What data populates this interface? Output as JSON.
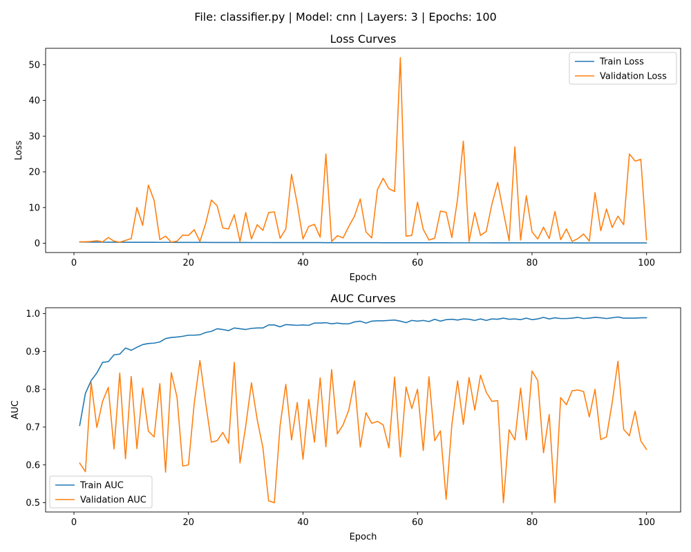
{
  "suptitle": "File: classifier.py | Model: cnn | Layers: 3 | Epochs: 100",
  "colors": {
    "train": "#1f77b4",
    "validation": "#ff7f0e"
  },
  "chart_data": [
    {
      "type": "line",
      "title": "Loss Curves",
      "xlabel": "Epoch",
      "ylabel": "Loss",
      "xlim": [
        -4.95,
        105.95
      ],
      "ylim": [
        -2.6,
        54.6
      ],
      "xticks": [
        0,
        20,
        40,
        60,
        80,
        100
      ],
      "yticks": [
        0,
        10,
        20,
        30,
        40,
        50
      ],
      "legend": "upper right",
      "grid": false,
      "x": [
        1,
        2,
        3,
        4,
        5,
        6,
        7,
        8,
        9,
        10,
        11,
        12,
        13,
        14,
        15,
        16,
        17,
        18,
        19,
        20,
        21,
        22,
        23,
        24,
        25,
        26,
        27,
        28,
        29,
        30,
        31,
        32,
        33,
        34,
        35,
        36,
        37,
        38,
        39,
        40,
        41,
        42,
        43,
        44,
        45,
        46,
        47,
        48,
        49,
        50,
        51,
        52,
        53,
        54,
        55,
        56,
        57,
        58,
        59,
        60,
        61,
        62,
        63,
        64,
        65,
        66,
        67,
        68,
        69,
        70,
        71,
        72,
        73,
        74,
        75,
        76,
        77,
        78,
        79,
        80,
        81,
        82,
        83,
        84,
        85,
        86,
        87,
        88,
        89,
        90,
        91,
        92,
        93,
        94,
        95,
        96,
        97,
        98,
        99,
        100
      ],
      "series": [
        {
          "name": "Train Loss",
          "color": "#1f77b4",
          "values": [
            0.35,
            0.33,
            0.32,
            0.31,
            0.3,
            0.29,
            0.29,
            0.28,
            0.28,
            0.27,
            0.27,
            0.26,
            0.26,
            0.26,
            0.25,
            0.25,
            0.25,
            0.24,
            0.24,
            0.24,
            0.23,
            0.23,
            0.23,
            0.22,
            0.22,
            0.22,
            0.21,
            0.21,
            0.21,
            0.21,
            0.2,
            0.2,
            0.2,
            0.2,
            0.19,
            0.19,
            0.19,
            0.19,
            0.18,
            0.18,
            0.18,
            0.18,
            0.18,
            0.17,
            0.17,
            0.17,
            0.17,
            0.17,
            0.16,
            0.16,
            0.16,
            0.16,
            0.16,
            0.15,
            0.15,
            0.15,
            0.15,
            0.15,
            0.15,
            0.14,
            0.14,
            0.14,
            0.14,
            0.14,
            0.14,
            0.13,
            0.13,
            0.13,
            0.13,
            0.13,
            0.13,
            0.13,
            0.12,
            0.12,
            0.12,
            0.12,
            0.12,
            0.12,
            0.12,
            0.11,
            0.11,
            0.11,
            0.11,
            0.11,
            0.11,
            0.11,
            0.11,
            0.1,
            0.1,
            0.1,
            0.1,
            0.1,
            0.1,
            0.1,
            0.1,
            0.1,
            0.09,
            0.09,
            0.09,
            0.09
          ]
        },
        {
          "name": "Validation Loss",
          "color": "#ff7f0e",
          "values": [
            0.4,
            0.4,
            0.5,
            0.7,
            0.4,
            1.6,
            0.6,
            0.3,
            0.8,
            1.3,
            10.0,
            5.0,
            16.3,
            12.0,
            1.0,
            2.0,
            0.3,
            0.6,
            2.3,
            2.2,
            3.8,
            0.5,
            5.5,
            12.1,
            10.5,
            4.3,
            4.0,
            8.0,
            0.5,
            8.6,
            1.2,
            5.2,
            3.6,
            8.6,
            8.8,
            1.4,
            4.0,
            19.3,
            11.0,
            1.2,
            4.7,
            5.3,
            1.7,
            25.0,
            0.5,
            2.1,
            1.5,
            4.7,
            7.6,
            12.4,
            3.2,
            1.5,
            15.0,
            18.2,
            15.3,
            14.5,
            52.0,
            2.0,
            2.2,
            11.5,
            3.9,
            0.9,
            1.4,
            9.0,
            8.7,
            1.6,
            12.5,
            28.6,
            0.5,
            8.6,
            2.2,
            3.3,
            11.0,
            17.0,
            8.7,
            0.7,
            27.0,
            0.9,
            13.3,
            3.2,
            1.2,
            4.5,
            1.3,
            8.9,
            1.0,
            4.0,
            0.5,
            1.3,
            2.6,
            0.6,
            14.2,
            3.5,
            9.6,
            4.4,
            7.6,
            5.2,
            25.0,
            23.0,
            23.5,
            0.9
          ]
        }
      ]
    },
    {
      "type": "line",
      "title": "AUC Curves",
      "xlabel": "Epoch",
      "ylabel": "AUC",
      "xlim": [
        -4.95,
        105.95
      ],
      "ylim": [
        0.4755,
        1.0155
      ],
      "xticks": [
        0,
        20,
        40,
        60,
        80,
        100
      ],
      "yticks": [
        0.5,
        0.6,
        0.7,
        0.8,
        0.9,
        1.0
      ],
      "legend": "lower left",
      "grid": false,
      "x": [
        1,
        2,
        3,
        4,
        5,
        6,
        7,
        8,
        9,
        10,
        11,
        12,
        13,
        14,
        15,
        16,
        17,
        18,
        19,
        20,
        21,
        22,
        23,
        24,
        25,
        26,
        27,
        28,
        29,
        30,
        31,
        32,
        33,
        34,
        35,
        36,
        37,
        38,
        39,
        40,
        41,
        42,
        43,
        44,
        45,
        46,
        47,
        48,
        49,
        50,
        51,
        52,
        53,
        54,
        55,
        56,
        57,
        58,
        59,
        60,
        61,
        62,
        63,
        64,
        65,
        66,
        67,
        68,
        69,
        70,
        71,
        72,
        73,
        74,
        75,
        76,
        77,
        78,
        79,
        80,
        81,
        82,
        83,
        84,
        85,
        86,
        87,
        88,
        89,
        90,
        91,
        92,
        93,
        94,
        95,
        96,
        97,
        98,
        99,
        100
      ],
      "series": [
        {
          "name": "Train AUC",
          "color": "#1f77b4",
          "values": [
            0.704,
            0.789,
            0.823,
            0.843,
            0.871,
            0.873,
            0.891,
            0.893,
            0.909,
            0.903,
            0.911,
            0.918,
            0.921,
            0.922,
            0.925,
            0.934,
            0.937,
            0.938,
            0.94,
            0.943,
            0.943,
            0.944,
            0.95,
            0.953,
            0.96,
            0.958,
            0.955,
            0.962,
            0.96,
            0.958,
            0.961,
            0.962,
            0.962,
            0.97,
            0.97,
            0.965,
            0.971,
            0.97,
            0.969,
            0.97,
            0.969,
            0.975,
            0.975,
            0.976,
            0.973,
            0.975,
            0.973,
            0.973,
            0.978,
            0.98,
            0.975,
            0.98,
            0.981,
            0.981,
            0.982,
            0.983,
            0.98,
            0.976,
            0.982,
            0.98,
            0.982,
            0.979,
            0.985,
            0.98,
            0.984,
            0.985,
            0.983,
            0.986,
            0.985,
            0.982,
            0.986,
            0.982,
            0.986,
            0.985,
            0.988,
            0.985,
            0.986,
            0.984,
            0.988,
            0.984,
            0.986,
            0.99,
            0.986,
            0.989,
            0.987,
            0.987,
            0.988,
            0.99,
            0.987,
            0.988,
            0.99,
            0.989,
            0.987,
            0.989,
            0.991,
            0.988,
            0.988,
            0.988,
            0.989,
            0.989
          ]
        },
        {
          "name": "Validation AUC",
          "color": "#ff7f0e",
          "values": [
            0.605,
            0.582,
            0.818,
            0.699,
            0.768,
            0.805,
            0.642,
            0.843,
            0.616,
            0.834,
            0.643,
            0.803,
            0.689,
            0.674,
            0.815,
            0.581,
            0.844,
            0.779,
            0.597,
            0.6,
            0.762,
            0.876,
            0.764,
            0.66,
            0.664,
            0.686,
            0.657,
            0.871,
            0.605,
            0.703,
            0.817,
            0.72,
            0.645,
            0.505,
            0.5,
            0.704,
            0.813,
            0.666,
            0.765,
            0.615,
            0.773,
            0.66,
            0.83,
            0.648,
            0.852,
            0.682,
            0.706,
            0.745,
            0.822,
            0.647,
            0.738,
            0.71,
            0.715,
            0.706,
            0.645,
            0.832,
            0.621,
            0.806,
            0.749,
            0.8,
            0.638,
            0.833,
            0.664,
            0.69,
            0.509,
            0.707,
            0.822,
            0.707,
            0.831,
            0.745,
            0.837,
            0.792,
            0.768,
            0.77,
            0.5,
            0.693,
            0.666,
            0.803,
            0.666,
            0.848,
            0.823,
            0.632,
            0.733,
            0.5,
            0.778,
            0.759,
            0.796,
            0.798,
            0.794,
            0.727,
            0.8,
            0.667,
            0.674,
            0.765,
            0.874,
            0.694,
            0.677,
            0.742,
            0.663,
            0.641
          ]
        }
      ]
    }
  ]
}
